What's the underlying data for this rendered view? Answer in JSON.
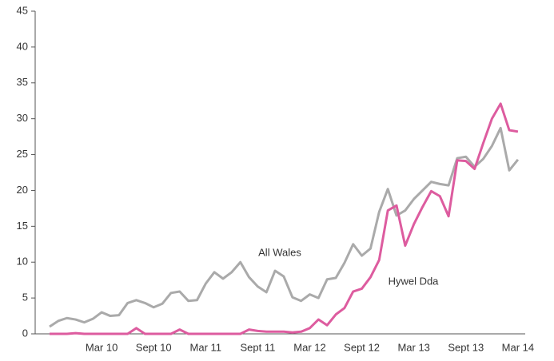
{
  "chart_data": {
    "type": "line",
    "categories": [
      null,
      null,
      null,
      null,
      null,
      null,
      "Mar 10",
      null,
      null,
      null,
      null,
      null,
      "Sept 10",
      null,
      null,
      null,
      null,
      null,
      "Mar 11",
      null,
      null,
      null,
      null,
      null,
      "Sept 11",
      null,
      null,
      null,
      null,
      null,
      "Mar 12",
      null,
      null,
      null,
      null,
      null,
      "Sept 12",
      null,
      null,
      null,
      null,
      null,
      "Mar 13",
      null,
      null,
      null,
      null,
      null,
      "Sept 13",
      null,
      null,
      null,
      null,
      null,
      "Mar 14"
    ],
    "series": [
      {
        "name": "All Wales",
        "color": "#aaaaaa",
        "values": [
          1.0,
          1.8,
          2.2,
          2.0,
          1.6,
          2.1,
          3.0,
          2.5,
          2.6,
          4.3,
          4.7,
          4.3,
          3.7,
          4.2,
          5.7,
          5.9,
          4.6,
          4.7,
          7.0,
          8.6,
          7.7,
          8.6,
          10.0,
          7.9,
          6.6,
          5.8,
          8.8,
          8.0,
          5.1,
          4.6,
          5.5,
          5.0,
          7.6,
          7.8,
          9.9,
          12.5,
          10.9,
          11.9,
          17.0,
          20.2,
          16.5,
          17.2,
          18.8,
          20.0,
          21.2,
          20.9,
          20.7,
          24.5,
          24.7,
          23.3,
          24.4,
          26.2,
          28.7,
          22.8,
          24.3
        ]
      },
      {
        "name": "Hywel Dda",
        "color": "#dd5c9f",
        "values": [
          0,
          0,
          0,
          0.1,
          0,
          0,
          0,
          0,
          0,
          0,
          0.8,
          0,
          0,
          0,
          0,
          0.6,
          0,
          0,
          0,
          0,
          0,
          0,
          0,
          0.6,
          0.4,
          0.3,
          0.3,
          0.3,
          0.2,
          0.3,
          0.8,
          2.0,
          1.2,
          2.7,
          3.6,
          5.9,
          6.3,
          7.9,
          10.3,
          17.2,
          17.9,
          12.3,
          15.3,
          17.7,
          19.9,
          19.2,
          16.4,
          24.2,
          24.1,
          23.0,
          26.6,
          30.0,
          32.1,
          28.4,
          28.2
        ]
      }
    ],
    "annotations": [
      "All Wales",
      "Hywel Dda"
    ],
    "ylim": [
      0,
      45
    ],
    "yticks": [
      0,
      5,
      10,
      15,
      20,
      25,
      30,
      35,
      40,
      45
    ],
    "grid": false
  }
}
